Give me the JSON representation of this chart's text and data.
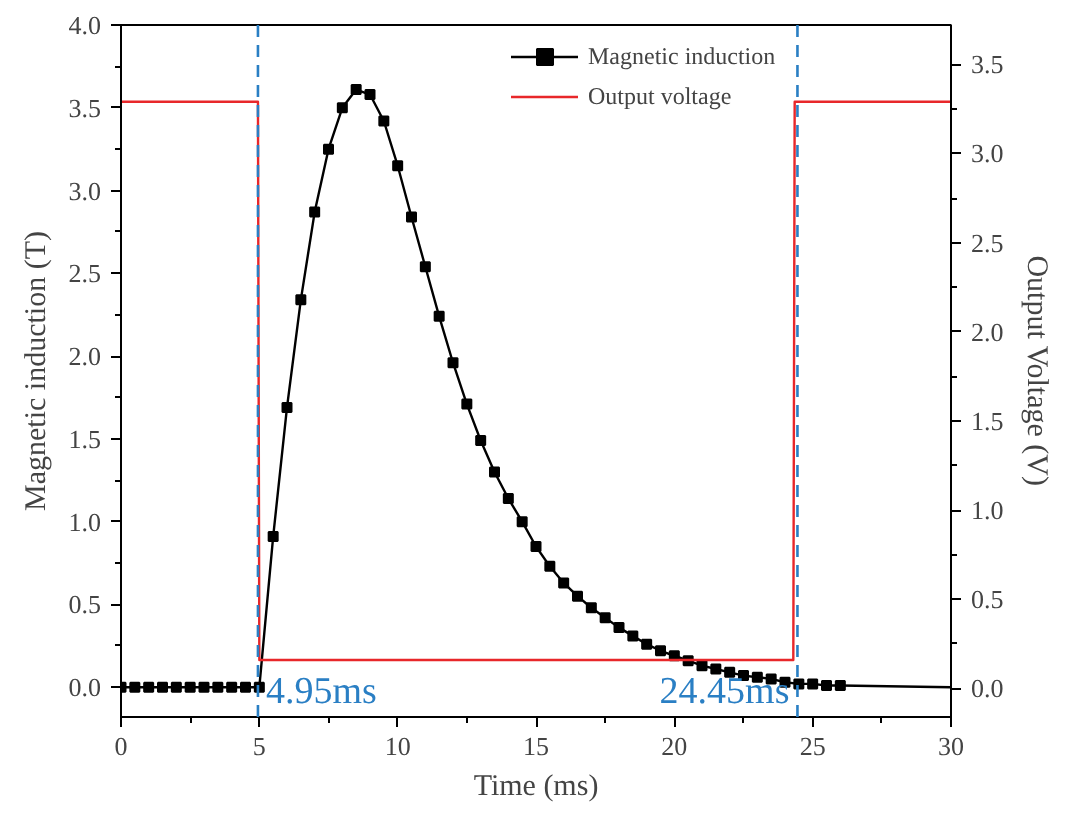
{
  "chart_data": {
    "type": "line",
    "xlabel": "Time (ms)",
    "ylabel": "Magnetic induction (T)",
    "y2label": "Output Voltage (V)",
    "xlim": [
      0,
      30
    ],
    "xticks": [
      0,
      5,
      10,
      15,
      20,
      25,
      30
    ],
    "ylim": [
      -0.18,
      4.0
    ],
    "yticks": [
      {
        "value": 0,
        "label": "0.0"
      },
      {
        "value": 0.5,
        "label": "0.5"
      },
      {
        "value": 1,
        "label": "1.0"
      },
      {
        "value": 1.5,
        "label": "1.5"
      },
      {
        "value": 2,
        "label": "2.0"
      },
      {
        "value": 2.5,
        "label": "2.5"
      },
      {
        "value": 3,
        "label": "3.0"
      },
      {
        "value": 3.5,
        "label": "3.5"
      },
      {
        "value": 4,
        "label": "4.0"
      }
    ],
    "y2lim": [
      -0.16,
      3.72
    ],
    "y2ticks": [
      {
        "value": 0,
        "label": "0.0"
      },
      {
        "value": 0.5,
        "label": "0.5"
      },
      {
        "value": 1,
        "label": "1.0"
      },
      {
        "value": 1.5,
        "label": "1.5"
      },
      {
        "value": 2,
        "label": "2.0"
      },
      {
        "value": 2.5,
        "label": "2.5"
      },
      {
        "value": 3,
        "label": "3.0"
      },
      {
        "value": 3.5,
        "label": "3.5"
      }
    ],
    "grid": false,
    "legend": "top",
    "series": [
      {
        "name": "Magnetic induction",
        "color": "#000000",
        "marker": "square",
        "x": [
          0,
          0.5,
          1,
          1.5,
          2,
          2.5,
          3,
          3.5,
          4,
          4.5,
          5,
          5.5,
          6,
          6.5,
          7,
          7.5,
          8,
          8.5,
          9,
          9.5,
          10,
          10.5,
          11,
          11.5,
          12,
          12.5,
          13,
          13.5,
          14,
          14.5,
          15,
          15.5,
          16,
          16.5,
          17,
          17.5,
          18,
          18.5,
          19,
          19.5,
          20,
          20.5,
          21,
          21.5,
          22,
          22.5,
          23,
          23.5,
          24,
          24.5,
          25,
          25.5,
          26
        ],
        "values": [
          0,
          0,
          0,
          0,
          0,
          0,
          0,
          0,
          0,
          0,
          0,
          0.91,
          1.69,
          2.34,
          2.87,
          3.25,
          3.5,
          3.61,
          3.58,
          3.42,
          3.15,
          2.84,
          2.54,
          2.24,
          1.96,
          1.71,
          1.49,
          1.3,
          1.14,
          1.0,
          0.85,
          0.73,
          0.63,
          0.55,
          0.48,
          0.42,
          0.36,
          0.31,
          0.26,
          0.22,
          0.19,
          0.16,
          0.13,
          0.11,
          0.09,
          0.07,
          0.06,
          0.05,
          0.03,
          0.02,
          0.02,
          0.01,
          0.01
        ]
      },
      {
        "color": "#000000",
        "marker": "none",
        "x": [
          26,
          30
        ],
        "values": [
          0.01,
          0.0
        ]
      },
      {
        "name": "Output voltage",
        "color": "#e8272a",
        "marker": "none",
        "axis": "y2",
        "x": [
          0,
          4.95,
          5.0,
          24.3,
          24.35,
          30
        ],
        "values": [
          3.29,
          3.29,
          0.16,
          0.16,
          3.29,
          3.29
        ]
      }
    ],
    "ref_lines": [
      {
        "axis": "x",
        "value": 4.95,
        "label": "4.95ms",
        "color": "#2a7fc4",
        "line_style": "dashed"
      },
      {
        "axis": "x",
        "value": 24.45,
        "label": "24.45ms",
        "color": "#2a7fc4",
        "line_style": "dashed"
      }
    ]
  }
}
